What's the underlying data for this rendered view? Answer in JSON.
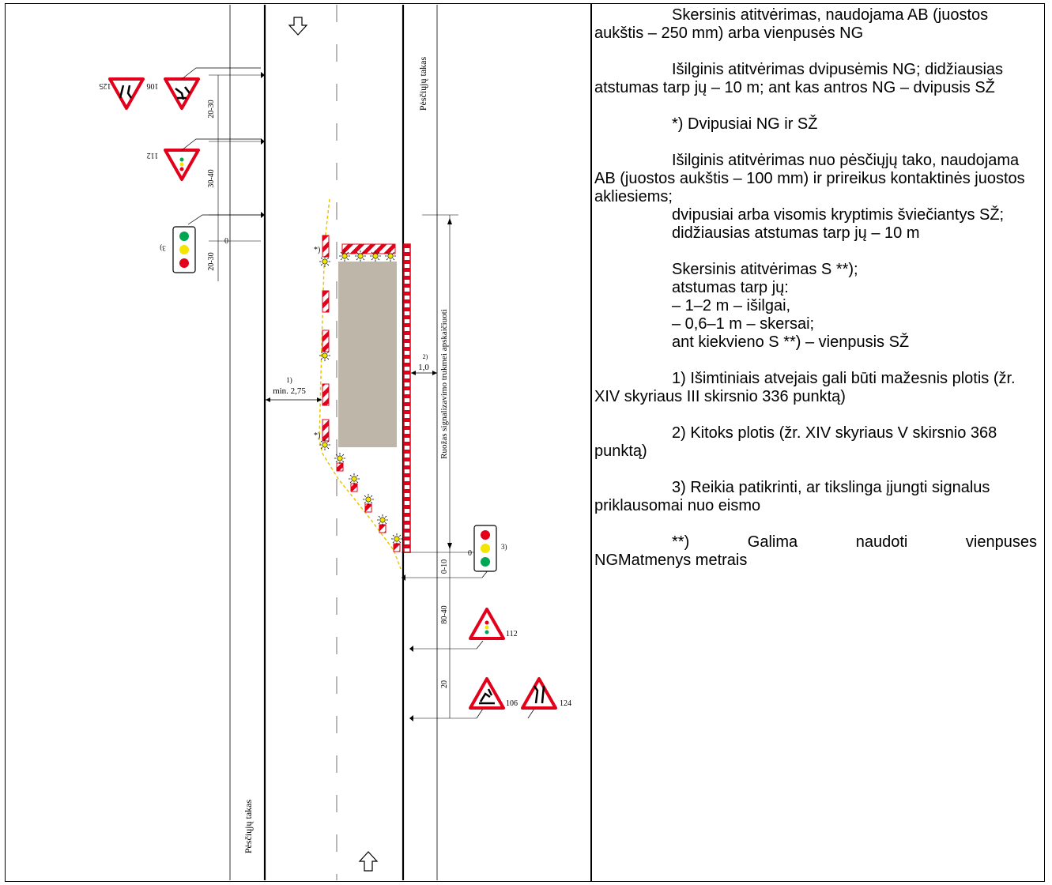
{
  "diagram": {
    "footpath_left": "Pėsčiųjų takas",
    "footpath_right": "Pėsčiųjų takas",
    "segment_label": "Ruožas signalizavimo trukmei apskaičiuoti",
    "dims": {
      "d_20_30_top": "20-30",
      "d_30_40": "30-40",
      "d_20_30_b": "20-30",
      "zero_left": "0",
      "zero_right": "0",
      "min_width_note": "1)",
      "min_width": "min. 2,75",
      "ped_gap_note": "2)",
      "ped_gap": "1,0",
      "d_0_10": "0-10",
      "d_80_40": "80-40",
      "d_20": "20"
    },
    "signs": {
      "top_left_a": "106",
      "top_left_b": "125",
      "mid_left": "112",
      "right_112": "112",
      "right_106": "106",
      "right_124": "124",
      "tl_left_note": "3)",
      "tl_right_note": "3)",
      "star_1": "*)",
      "star_2": "*)"
    },
    "colors": {
      "red": "#e2001a",
      "yellow": "#f4e500",
      "green": "#00a651",
      "work_area": "#bfb6aa"
    }
  },
  "legend": {
    "p1": "Skersinis atitvėrimas, naudojama AB (juostos aukštis – 250 mm) arba vienpusės NG",
    "p2": "Išilginis atitvėrimas dvipusėmis NG; didžiausias atstumas tarp jų – 10 m; ant kas antros NG – dvipusis SŽ",
    "p3": "*) Dvipusiai NG ir SŽ",
    "p4a": "Išilginis atitvėrimas nuo pėsčiųjų tako, naudojama AB (juostos aukštis – 100 mm) ir prireikus kontaktinės juostos akliesiems;",
    "p4b": "dvipusiai arba visomis kryptimis šviečiantys SŽ;",
    "p4c": "didžiausias atstumas tarp jų – 10 m",
    "p5a": "Skersinis atitvėrimas S **);",
    "p5b": "atstumas tarp jų:",
    "p5c": "– 1–2 m – išilgai,",
    "p5d": "– 0,6–1 m – skersai;",
    "p5e": "ant kiekvieno S **) – vienpusis SŽ",
    "p6": "1) Išimtiniais atvejais gali būti mažesnis plotis (žr. XIV skyriaus III skirsnio 336 punktą)",
    "p7": "2) Kitoks plotis (žr. XIV skyriaus V skirsnio 368 punktą)",
    "p8": "3) Reikia patikrinti, ar tikslinga įjungti signalus priklausomai nuo eismo",
    "p9a": "**)",
    "p9b": "Galima",
    "p9c": "naudoti",
    "p9d": "vienpuses",
    "p9e": "NGMatmenys metrais"
  }
}
